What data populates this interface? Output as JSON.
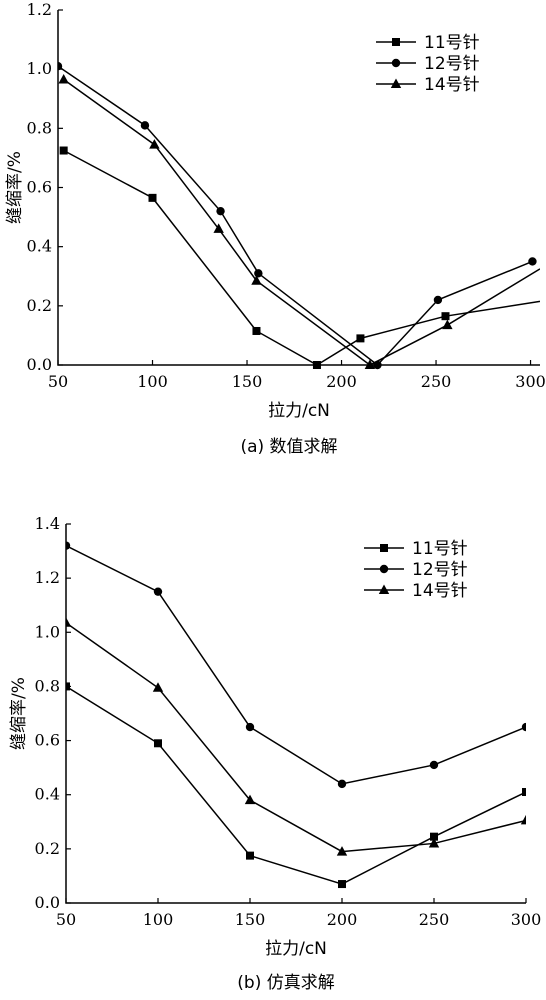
{
  "chart_data": [
    {
      "type": "line",
      "caption": "(a) 数值求解",
      "xlabel": "拉力/cN",
      "ylabel": "缝缩率/%",
      "xlim": [
        50,
        305
      ],
      "ylim": [
        0,
        1.2
      ],
      "xticks": [
        "50",
        "100",
        "150",
        "200",
        "250",
        "300"
      ],
      "yticks": [
        "0.0",
        "0.2",
        "0.4",
        "0.6",
        "0.8",
        "1.0",
        "1.2"
      ],
      "legend_position": "top-right",
      "series": [
        {
          "name": "11号针",
          "marker": "square",
          "x": [
            53,
            100,
            155,
            187,
            210,
            255
          ],
          "y": [
            0.725,
            0.565,
            0.115,
            0.0,
            0.09,
            0.165
          ],
          "line_to": [
            305,
            0.215
          ]
        },
        {
          "name": "12号针",
          "marker": "circle",
          "x": [
            50,
            96,
            136,
            156,
            219,
            251,
            301
          ],
          "y": [
            1.01,
            0.81,
            0.52,
            0.31,
            0.0,
            0.22,
            0.35
          ]
        },
        {
          "name": "14号针",
          "marker": "triangle",
          "x": [
            53,
            101,
            135,
            155,
            215,
            256
          ],
          "y": [
            0.965,
            0.745,
            0.46,
            0.285,
            0.0,
            0.135
          ],
          "line_to": [
            305,
            0.325
          ]
        }
      ]
    },
    {
      "type": "line",
      "caption": "(b) 仿真求解",
      "xlabel": "拉力/cN",
      "ylabel": "缝缩率/%",
      "xlim": [
        50,
        300
      ],
      "ylim": [
        0,
        1.4
      ],
      "xticks": [
        "50",
        "100",
        "150",
        "200",
        "250",
        "300"
      ],
      "yticks": [
        "0.0",
        "0.2",
        "0.4",
        "0.6",
        "0.8",
        "1.0",
        "1.2",
        "1.4"
      ],
      "legend_position": "top-right",
      "series": [
        {
          "name": "11号针",
          "marker": "square",
          "x": [
            50,
            100,
            150,
            200,
            250,
            300
          ],
          "y": [
            0.8,
            0.59,
            0.175,
            0.07,
            0.245,
            0.41
          ]
        },
        {
          "name": "12号针",
          "marker": "circle",
          "x": [
            50,
            100,
            150,
            200,
            250,
            300
          ],
          "y": [
            1.32,
            1.15,
            0.65,
            0.44,
            0.51,
            0.65
          ]
        },
        {
          "name": "14号针",
          "marker": "triangle",
          "x": [
            50,
            100,
            150,
            200,
            250,
            300
          ],
          "y": [
            1.035,
            0.795,
            0.38,
            0.19,
            0.22,
            0.305
          ]
        }
      ]
    }
  ]
}
